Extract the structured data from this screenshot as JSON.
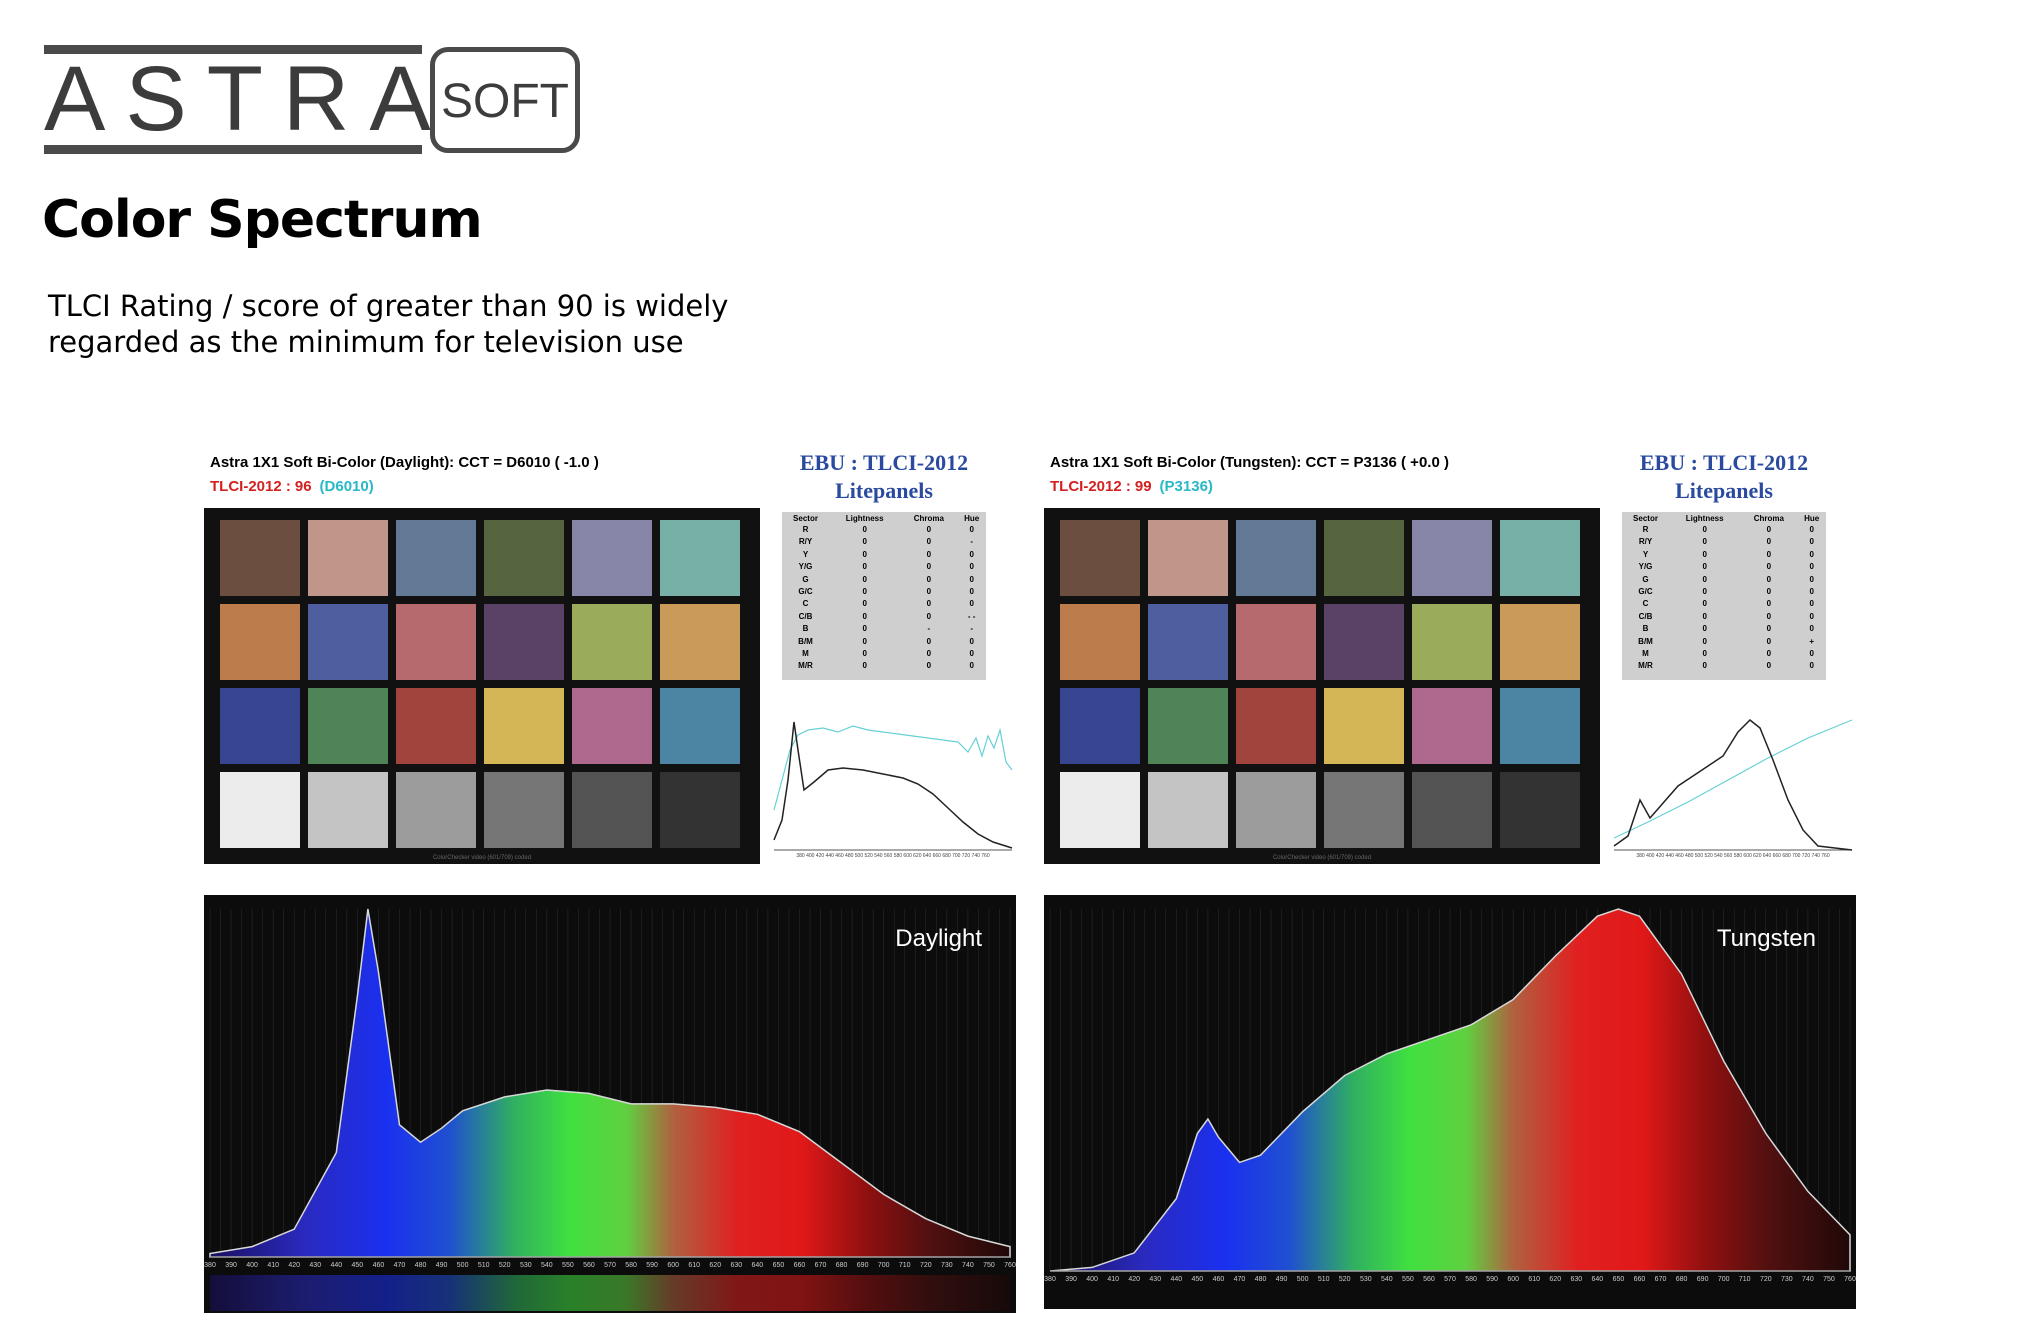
{
  "logo": {
    "brand": "ASTRA",
    "product": "SOFT"
  },
  "page": {
    "title": "Color Spectrum",
    "intro_line1": "TLCI Rating / score of greater than 90 is widely",
    "intro_line2": "regarded as the minimum for television use"
  },
  "reports": [
    {
      "title": "Astra 1X1 Soft Bi-Color (Daylight): CCT = D6010  ( -1.0 )",
      "score_label": "TLCI-2012 :",
      "score_value": "96",
      "score_cct": "(D6010)",
      "ebu_title": "EBU : TLCI-2012",
      "ebu_subtitle": "Litepanels",
      "table_headers": [
        "Sector",
        "Lightness",
        "Chroma",
        "Hue"
      ],
      "table_rows": [
        [
          "R",
          "0",
          "0",
          "0"
        ],
        [
          "R/Y",
          "0",
          "0",
          "-"
        ],
        [
          "Y",
          "0",
          "0",
          "0"
        ],
        [
          "Y/G",
          "0",
          "0",
          "0"
        ],
        [
          "G",
          "0",
          "0",
          "0"
        ],
        [
          "G/C",
          "0",
          "0",
          "0"
        ],
        [
          "C",
          "0",
          "0",
          "0"
        ],
        [
          "C/B",
          "0",
          "0",
          "- -"
        ],
        [
          "B",
          "0",
          "-",
          "-"
        ],
        [
          "B/M",
          "0",
          "0",
          "0"
        ],
        [
          "M",
          "0",
          "0",
          "0"
        ],
        [
          "M/R",
          "0",
          "0",
          "0"
        ]
      ],
      "checker_caption": "ColorChecker video (601/709) coded"
    },
    {
      "title": "Astra 1X1 Soft Bi-Color (Tungsten): CCT = P3136  ( +0.0 )",
      "score_label": "TLCI-2012 :",
      "score_value": "99",
      "score_cct": "(P3136)",
      "ebu_title": "EBU : TLCI-2012",
      "ebu_subtitle": "Litepanels",
      "table_headers": [
        "Sector",
        "Lightness",
        "Chroma",
        "Hue"
      ],
      "table_rows": [
        [
          "R",
          "0",
          "0",
          "0"
        ],
        [
          "R/Y",
          "0",
          "0",
          "0"
        ],
        [
          "Y",
          "0",
          "0",
          "0"
        ],
        [
          "Y/G",
          "0",
          "0",
          "0"
        ],
        [
          "G",
          "0",
          "0",
          "0"
        ],
        [
          "G/C",
          "0",
          "0",
          "0"
        ],
        [
          "C",
          "0",
          "0",
          "0"
        ],
        [
          "C/B",
          "0",
          "0",
          "0"
        ],
        [
          "B",
          "0",
          "0",
          "0"
        ],
        [
          "B/M",
          "0",
          "0",
          "+"
        ],
        [
          "M",
          "0",
          "0",
          "0"
        ],
        [
          "M/R",
          "0",
          "0",
          "0"
        ]
      ],
      "checker_caption": "ColorChecker video (601/709) coded"
    }
  ],
  "swatch_colors": [
    "#6b4e40",
    "#c0958a",
    "#637a96",
    "#56643f",
    "#8785a8",
    "#76b0a6",
    "#bd7c4c",
    "#4e5e9e",
    "#b66a6e",
    "#5a4266",
    "#9aab5c",
    "#c99a58",
    "#384591",
    "#4e8456",
    "#a2443e",
    "#d4b656",
    "#b0698e",
    "#4c84a4",
    "#ececec",
    "#c4c4c4",
    "#9c9c9c",
    "#767676",
    "#545454",
    "#333333"
  ],
  "spectra": [
    {
      "label": "Daylight"
    },
    {
      "label": "Tungsten"
    }
  ],
  "wavelength_ticks": [
    "380",
    "390",
    "400",
    "410",
    "420",
    "430",
    "440",
    "450",
    "460",
    "470",
    "480",
    "490",
    "500",
    "510",
    "520",
    "530",
    "540",
    "550",
    "560",
    "570",
    "580",
    "590",
    "600",
    "610",
    "620",
    "630",
    "640",
    "650",
    "660",
    "670",
    "680",
    "690",
    "700",
    "710",
    "720",
    "730",
    "740",
    "750",
    "760"
  ],
  "chart_data": [
    {
      "type": "area",
      "series": [
        {
          "name": "Daylight",
          "x": [
            380,
            400,
            420,
            440,
            450,
            455,
            460,
            470,
            480,
            490,
            500,
            520,
            540,
            560,
            580,
            600,
            620,
            640,
            660,
            680,
            700,
            720,
            740,
            760
          ],
          "values": [
            0.01,
            0.03,
            0.08,
            0.3,
            0.75,
            1.0,
            0.82,
            0.38,
            0.33,
            0.37,
            0.42,
            0.46,
            0.48,
            0.47,
            0.44,
            0.44,
            0.43,
            0.41,
            0.36,
            0.27,
            0.18,
            0.11,
            0.06,
            0.03
          ]
        }
      ],
      "xlim": [
        380,
        760
      ],
      "ylim": [
        0,
        1
      ]
    },
    {
      "type": "area",
      "series": [
        {
          "name": "Tungsten",
          "x": [
            380,
            400,
            420,
            440,
            450,
            455,
            460,
            470,
            480,
            490,
            500,
            520,
            540,
            560,
            580,
            600,
            620,
            640,
            650,
            660,
            680,
            700,
            720,
            740,
            760
          ],
          "values": [
            0.0,
            0.01,
            0.05,
            0.2,
            0.38,
            0.42,
            0.37,
            0.3,
            0.32,
            0.38,
            0.44,
            0.54,
            0.6,
            0.64,
            0.68,
            0.75,
            0.87,
            0.98,
            1.0,
            0.98,
            0.82,
            0.58,
            0.38,
            0.22,
            0.1
          ]
        }
      ],
      "xlim": [
        380,
        760
      ],
      "ylim": [
        0,
        1
      ]
    }
  ]
}
